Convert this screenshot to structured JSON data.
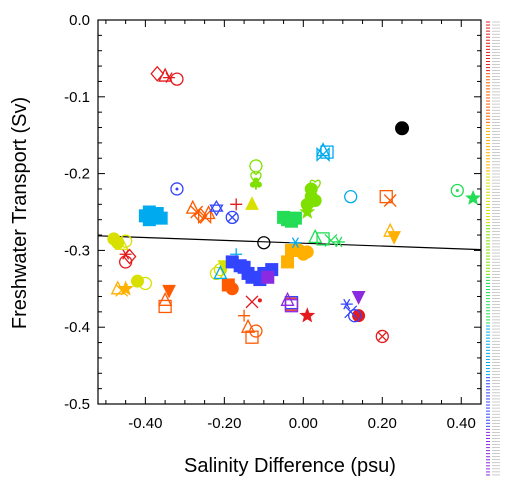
{
  "chart_data": {
    "type": "scatter",
    "title": "",
    "xlabel": "Salinity Difference (psu)",
    "ylabel": "Freshwater Transport (Sv)",
    "xlim": [
      -0.52,
      0.45
    ],
    "ylim": [
      -0.5,
      0.0
    ],
    "x_ticks": [
      -0.4,
      -0.2,
      0.0,
      0.2,
      0.4
    ],
    "x_tick_labels": [
      "-0.40",
      "-0.20",
      "0.00",
      "0.20",
      "0.40"
    ],
    "y_ticks": [
      0.0,
      -0.1,
      -0.2,
      -0.3,
      -0.4,
      -0.5
    ],
    "y_tick_labels": [
      "0.0",
      "-0.1",
      "-0.2",
      "-0.3",
      "-0.4",
      "-0.5"
    ],
    "grid": false,
    "legend_placement": "right (too small to read)",
    "regression_line": {
      "x": [
        -0.52,
        0.45
      ],
      "y": [
        -0.281,
        -0.299
      ]
    },
    "highlight_points": [
      {
        "x": 0.25,
        "y": -0.141,
        "style": "filled-black-circle"
      },
      {
        "x": -0.1,
        "y": -0.29,
        "style": "open-black-circle"
      }
    ],
    "series": [
      {
        "color": "#e41a1c",
        "points": [
          {
            "x": -0.37,
            "y": -0.07,
            "m": "diamond"
          },
          {
            "x": -0.35,
            "y": -0.073,
            "m": "triangle"
          },
          {
            "x": -0.34,
            "y": -0.075,
            "m": "asterisk"
          },
          {
            "x": -0.32,
            "y": -0.077,
            "m": "circle"
          },
          {
            "x": -0.45,
            "y": -0.305,
            "m": "asterisk"
          },
          {
            "x": -0.45,
            "y": -0.315,
            "m": "circle"
          },
          {
            "x": -0.44,
            "y": -0.308,
            "m": "diamond"
          },
          {
            "x": -0.17,
            "y": -0.24,
            "m": "plus"
          },
          {
            "x": -0.13,
            "y": -0.367,
            "m": "x"
          },
          {
            "x": -0.11,
            "y": -0.365,
            "m": "dot"
          },
          {
            "x": -0.03,
            "y": -0.37,
            "m": "square"
          },
          {
            "x": 0.01,
            "y": -0.385,
            "m": "star"
          },
          {
            "x": 0.14,
            "y": -0.385,
            "m": "circle-filled"
          },
          {
            "x": 0.14,
            "y": -0.36,
            "m": "triangle-down"
          },
          {
            "x": 0.2,
            "y": -0.412,
            "m": "circle-x"
          }
        ]
      },
      {
        "color": "#ff5a00",
        "points": [
          {
            "x": -0.34,
            "y": -0.352,
            "m": "triangle-down"
          },
          {
            "x": -0.35,
            "y": -0.365,
            "m": "triangle"
          },
          {
            "x": -0.35,
            "y": -0.373,
            "m": "square"
          },
          {
            "x": -0.28,
            "y": -0.245,
            "m": "triangle"
          },
          {
            "x": -0.27,
            "y": -0.25,
            "m": "x"
          },
          {
            "x": -0.26,
            "y": -0.255,
            "m": "diamond"
          },
          {
            "x": -0.25,
            "y": -0.256,
            "m": "bowtie"
          },
          {
            "x": -0.24,
            "y": -0.252,
            "m": "triangle"
          },
          {
            "x": -0.19,
            "y": -0.345,
            "m": "square-filled"
          },
          {
            "x": -0.18,
            "y": -0.35,
            "m": "circle-filled"
          },
          {
            "x": -0.15,
            "y": -0.385,
            "m": "plus"
          },
          {
            "x": -0.14,
            "y": -0.4,
            "m": "triangle"
          },
          {
            "x": -0.13,
            "y": -0.413,
            "m": "square"
          },
          {
            "x": -0.12,
            "y": -0.405,
            "m": "circle"
          },
          {
            "x": 0.21,
            "y": -0.23,
            "m": "square"
          },
          {
            "x": 0.22,
            "y": -0.235,
            "m": "x"
          }
        ]
      },
      {
        "color": "#ffb000",
        "points": [
          {
            "x": -0.47,
            "y": -0.35,
            "m": "triangle"
          },
          {
            "x": -0.46,
            "y": -0.352,
            "m": "x"
          },
          {
            "x": -0.45,
            "y": -0.35,
            "m": "star"
          },
          {
            "x": -0.01,
            "y": -0.3,
            "m": "circle-filled"
          },
          {
            "x": 0.0,
            "y": -0.305,
            "m": "circle-filled"
          },
          {
            "x": 0.01,
            "y": -0.302,
            "m": "circle-filled"
          },
          {
            "x": -0.02,
            "y": -0.3,
            "m": "circle-filled"
          },
          {
            "x": -0.04,
            "y": -0.315,
            "m": "square-filled"
          },
          {
            "x": -0.03,
            "y": -0.3,
            "m": "square-filled"
          },
          {
            "x": 0.22,
            "y": -0.275,
            "m": "triangle"
          },
          {
            "x": 0.23,
            "y": -0.282,
            "m": "triangle-down"
          }
        ]
      },
      {
        "color": "#d8e000",
        "points": [
          {
            "x": -0.48,
            "y": -0.285,
            "m": "circle-filled"
          },
          {
            "x": -0.47,
            "y": -0.29,
            "m": "circle-filled"
          },
          {
            "x": -0.46,
            "y": -0.292,
            "m": "triangle"
          },
          {
            "x": -0.45,
            "y": -0.288,
            "m": "circle"
          },
          {
            "x": -0.22,
            "y": -0.33,
            "m": "circle"
          },
          {
            "x": -0.21,
            "y": -0.325,
            "m": "circle"
          },
          {
            "x": -0.2,
            "y": -0.32,
            "m": "triangle-down"
          },
          {
            "x": -0.4,
            "y": -0.343,
            "m": "circle"
          },
          {
            "x": -0.42,
            "y": -0.34,
            "m": "circle-filled"
          },
          {
            "x": -0.13,
            "y": -0.24,
            "m": "triangle-filled"
          }
        ]
      },
      {
        "color": "#7fe000",
        "points": [
          {
            "x": -0.12,
            "y": -0.19,
            "m": "circle"
          },
          {
            "x": -0.12,
            "y": -0.205,
            "m": "heart"
          },
          {
            "x": -0.12,
            "y": -0.213,
            "m": "club"
          },
          {
            "x": 0.02,
            "y": -0.23,
            "m": "circle-filled"
          },
          {
            "x": 0.03,
            "y": -0.215,
            "m": "heart"
          },
          {
            "x": 0.02,
            "y": -0.22,
            "m": "circle-filled"
          },
          {
            "x": 0.01,
            "y": -0.25,
            "m": "star"
          },
          {
            "x": 0.03,
            "y": -0.235,
            "m": "circle-filled"
          },
          {
            "x": 0.01,
            "y": -0.24,
            "m": "circle-filled"
          }
        ]
      },
      {
        "color": "#22dd55",
        "points": [
          {
            "x": -0.05,
            "y": -0.257,
            "m": "square-filled"
          },
          {
            "x": -0.04,
            "y": -0.26,
            "m": "square-filled"
          },
          {
            "x": -0.03,
            "y": -0.262,
            "m": "square-filled"
          },
          {
            "x": -0.02,
            "y": -0.258,
            "m": "square-filled"
          },
          {
            "x": 0.03,
            "y": -0.283,
            "m": "triangle"
          },
          {
            "x": 0.05,
            "y": -0.285,
            "m": "square"
          },
          {
            "x": 0.07,
            "y": -0.287,
            "m": "x"
          },
          {
            "x": 0.09,
            "y": -0.289,
            "m": "asterisk"
          },
          {
            "x": 0.39,
            "y": -0.222,
            "m": "circle-dot"
          },
          {
            "x": 0.43,
            "y": -0.232,
            "m": "star"
          }
        ]
      },
      {
        "color": "#00aaee",
        "points": [
          {
            "x": -0.39,
            "y": -0.25,
            "m": "square-filled"
          },
          {
            "x": -0.38,
            "y": -0.255,
            "m": "square-filled"
          },
          {
            "x": -0.39,
            "y": -0.26,
            "m": "square-filled"
          },
          {
            "x": -0.37,
            "y": -0.252,
            "m": "square-filled"
          },
          {
            "x": -0.36,
            "y": -0.258,
            "m": "square-filled"
          },
          {
            "x": -0.4,
            "y": -0.255,
            "m": "square-filled"
          },
          {
            "x": 0.05,
            "y": -0.17,
            "m": "triangle"
          },
          {
            "x": 0.06,
            "y": -0.172,
            "m": "square"
          },
          {
            "x": 0.05,
            "y": -0.175,
            "m": "bowtie"
          },
          {
            "x": 0.12,
            "y": -0.23,
            "m": "circle"
          },
          {
            "x": -0.02,
            "y": -0.29,
            "m": "asterisk"
          },
          {
            "x": -0.17,
            "y": -0.305,
            "m": "plus"
          },
          {
            "x": -0.21,
            "y": -0.33,
            "m": "triangle"
          }
        ]
      },
      {
        "color": "#3344ff",
        "points": [
          {
            "x": -0.32,
            "y": -0.22,
            "m": "circle-dot"
          },
          {
            "x": -0.22,
            "y": -0.245,
            "m": "star6"
          },
          {
            "x": -0.18,
            "y": -0.257,
            "m": "circle-x"
          },
          {
            "x": -0.18,
            "y": -0.315,
            "m": "square-filled"
          },
          {
            "x": -0.16,
            "y": -0.32,
            "m": "square-filled"
          },
          {
            "x": -0.15,
            "y": -0.322,
            "m": "square-filled"
          },
          {
            "x": -0.14,
            "y": -0.33,
            "m": "square-filled"
          },
          {
            "x": -0.13,
            "y": -0.335,
            "m": "square-filled"
          },
          {
            "x": -0.11,
            "y": -0.338,
            "m": "square-filled"
          },
          {
            "x": -0.1,
            "y": -0.33,
            "m": "square-filled"
          },
          {
            "x": -0.08,
            "y": -0.325,
            "m": "square-filled"
          },
          {
            "x": -0.03,
            "y": -0.368,
            "m": "square"
          },
          {
            "x": 0.11,
            "y": -0.37,
            "m": "asterisk"
          },
          {
            "x": 0.12,
            "y": -0.38,
            "m": "x"
          },
          {
            "x": 0.13,
            "y": -0.385,
            "m": "circle"
          }
        ]
      },
      {
        "color": "#8a2be2",
        "points": [
          {
            "x": -0.04,
            "y": -0.365,
            "m": "triangle"
          },
          {
            "x": -0.03,
            "y": -0.372,
            "m": "square"
          },
          {
            "x": 0.14,
            "y": -0.36,
            "m": "triangle-down"
          },
          {
            "x": -0.09,
            "y": -0.335,
            "m": "square-filled"
          }
        ]
      }
    ]
  }
}
